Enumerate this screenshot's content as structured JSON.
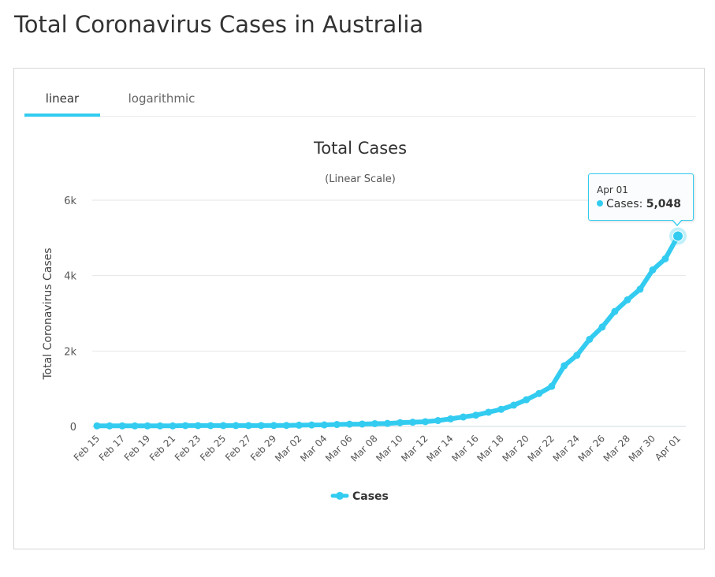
{
  "page_title": "Total Coronavirus Cases in Australia",
  "tabs": [
    {
      "label": "linear",
      "active": true
    },
    {
      "label": "logarithmic",
      "active": false
    }
  ],
  "colors": {
    "series": "#33ccf0",
    "grid": "#e6e6e6",
    "tab_underline": "#33ccf0"
  },
  "tooltip": {
    "date": "Apr 01",
    "series": "Cases",
    "value": "5,048"
  },
  "chart_data": {
    "type": "line",
    "title": "Total Cases",
    "subtitle": "(Linear Scale)",
    "xlabel": "",
    "ylabel": "Total Coronavirus Cases",
    "ylim": [
      0,
      6000
    ],
    "y_ticks": [
      0,
      2000,
      4000,
      6000
    ],
    "y_tick_labels": [
      "0",
      "2k",
      "4k",
      "6k"
    ],
    "grid": true,
    "legend": "bottom-center",
    "x": [
      "Feb 15",
      "Feb 16",
      "Feb 17",
      "Feb 18",
      "Feb 19",
      "Feb 20",
      "Feb 21",
      "Feb 22",
      "Feb 23",
      "Feb 24",
      "Feb 25",
      "Feb 26",
      "Feb 27",
      "Feb 28",
      "Feb 29",
      "Mar 01",
      "Mar 02",
      "Mar 03",
      "Mar 04",
      "Mar 05",
      "Mar 06",
      "Mar 07",
      "Mar 08",
      "Mar 09",
      "Mar 10",
      "Mar 11",
      "Mar 12",
      "Mar 13",
      "Mar 14",
      "Mar 15",
      "Mar 16",
      "Mar 17",
      "Mar 18",
      "Mar 19",
      "Mar 20",
      "Mar 21",
      "Mar 22",
      "Mar 23",
      "Mar 24",
      "Mar 25",
      "Mar 26",
      "Mar 27",
      "Mar 28",
      "Mar 29",
      "Mar 30",
      "Mar 31",
      "Apr 01"
    ],
    "x_tick_labels": [
      "Feb 15",
      "Feb 17",
      "Feb 19",
      "Feb 21",
      "Feb 23",
      "Feb 25",
      "Feb 27",
      "Feb 29",
      "Mar 02",
      "Mar 04",
      "Mar 06",
      "Mar 08",
      "Mar 10",
      "Mar 12",
      "Mar 14",
      "Mar 16",
      "Mar 18",
      "Mar 20",
      "Mar 22",
      "Mar 24",
      "Mar 26",
      "Mar 28",
      "Mar 30",
      "Apr 01"
    ],
    "series": [
      {
        "name": "Cases",
        "values": [
          15,
          15,
          15,
          15,
          15,
          15,
          15,
          22,
          22,
          22,
          23,
          23,
          23,
          24,
          25,
          27,
          33,
          39,
          41,
          52,
          60,
          63,
          74,
          80,
          100,
          112,
          126,
          156,
          200,
          250,
          298,
          377,
          454,
          565,
          709,
          874,
          1063,
          1610,
          1887,
          2311,
          2636,
          3049,
          3357,
          3640,
          4152,
          4448,
          5048
        ]
      }
    ]
  }
}
